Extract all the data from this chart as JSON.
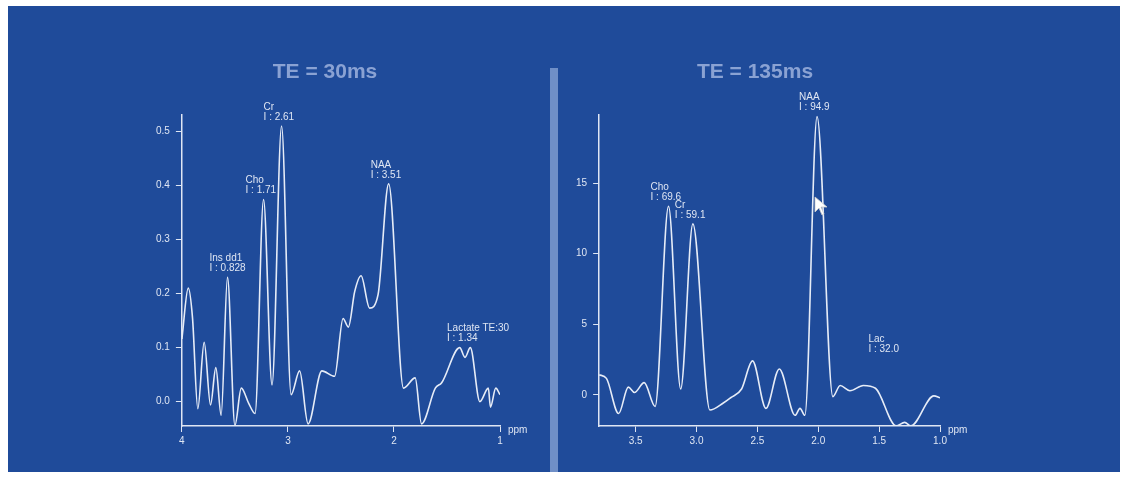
{
  "chart_data": [
    {
      "type": "line",
      "title": "TE = 30ms",
      "xlabel": "ppm",
      "color": "#e6ecf7",
      "marker": "none",
      "grid": false,
      "legend": false,
      "x": [
        4.0,
        3.94,
        3.9,
        3.85,
        3.79,
        3.73,
        3.68,
        3.63,
        3.57,
        3.5,
        3.44,
        3.37,
        3.31,
        3.23,
        3.15,
        3.06,
        2.97,
        2.89,
        2.81,
        2.68,
        2.56,
        2.48,
        2.43,
        2.37,
        2.31,
        2.23,
        2.15,
        2.05,
        1.91,
        1.8,
        1.74,
        1.61,
        1.55,
        1.38,
        1.33,
        1.28,
        1.19,
        1.11,
        1.09,
        1.04,
        1.0
      ],
      "values": [
        0.116,
        0.21,
        0.155,
        -0.013,
        0.11,
        -0.006,
        0.063,
        -0.025,
        0.23,
        -0.044,
        0.025,
        -0.003,
        -0.022,
        0.374,
        0.031,
        0.51,
        0.013,
        0.057,
        -0.041,
        0.057,
        0.047,
        0.154,
        0.138,
        0.204,
        0.233,
        0.173,
        0.198,
        0.403,
        0.025,
        0.044,
        -0.041,
        0.025,
        0.035,
        0.1,
        0.082,
        0.1,
        0.0,
        0.025,
        -0.01,
        0.025,
        0.013
      ],
      "xlim": [
        4,
        1
      ],
      "xticks": [
        4,
        3,
        2,
        1
      ],
      "ylim": [
        -0.045,
        0.53
      ],
      "yticks": [
        {
          "value": 0,
          "label": "0.0"
        },
        0.1,
        0.2,
        0.3,
        0.4,
        0.5
      ],
      "annotations": [
        {
          "text": "Ins dd1\nI : 0.828",
          "x": 3.57,
          "y": 0.23
        },
        {
          "text": "Cho\nI : 1.71",
          "x": 3.23,
          "y": 0.374
        },
        {
          "text": "Cr\nI : 2.61",
          "x": 3.06,
          "y": 0.51
        },
        {
          "text": "NAA\nI : 3.51",
          "x": 2.05,
          "y": 0.403
        },
        {
          "text": "Lactate TE:30\nI : 1.34",
          "x": 1.33,
          "y": 0.1
        }
      ]
    },
    {
      "type": "line",
      "title": "TE = 135ms",
      "xlabel": "ppm",
      "color": "#e6ecf7",
      "marker": "none",
      "grid": false,
      "legend": false,
      "x": [
        3.8,
        3.74,
        3.64,
        3.56,
        3.51,
        3.43,
        3.34,
        3.23,
        3.13,
        3.03,
        2.89,
        2.78,
        2.72,
        2.63,
        2.54,
        2.43,
        2.32,
        2.19,
        2.15,
        2.11,
        2.01,
        1.88,
        1.82,
        1.74,
        1.63,
        1.53,
        1.36,
        1.29,
        1.24,
        1.05,
        1.0
      ],
      "values": [
        1.42,
        1.17,
        -1.32,
        0.55,
        0.17,
        0.87,
        -0.82,
        13.36,
        0.42,
        12.11,
        -1.07,
        -0.57,
        -0.2,
        0.42,
        2.41,
        -0.95,
        1.84,
        -1.44,
        -0.95,
        -1.44,
        19.7,
        -0.12,
        0.67,
        0.3,
        0.67,
        0.47,
        -2.19,
        -1.94,
        -2.19,
        -0.07,
        -0.2
      ],
      "xlim": [
        3.8,
        1
      ],
      "xticks": [
        3.5,
        {
          "value": 3,
          "label": "3.0"
        },
        2.5,
        {
          "value": 2,
          "label": "2.0"
        },
        1.5,
        {
          "value": 1,
          "label": "1.0"
        }
      ],
      "ylim": [
        -2.2,
        19.8
      ],
      "yticks": [
        0,
        5,
        10,
        15
      ],
      "annotations": [
        {
          "text": "Cho\nI : 69.6",
          "x": 3.23,
          "y": 13.36
        },
        {
          "text": "Cr\nI : 59.1",
          "x": 3.03,
          "y": 12.11
        },
        {
          "text": "NAA\nI : 94.9",
          "x": 2.01,
          "y": 19.7
        },
        "Lac\nI : 32.0"
      ]
    }
  ]
}
